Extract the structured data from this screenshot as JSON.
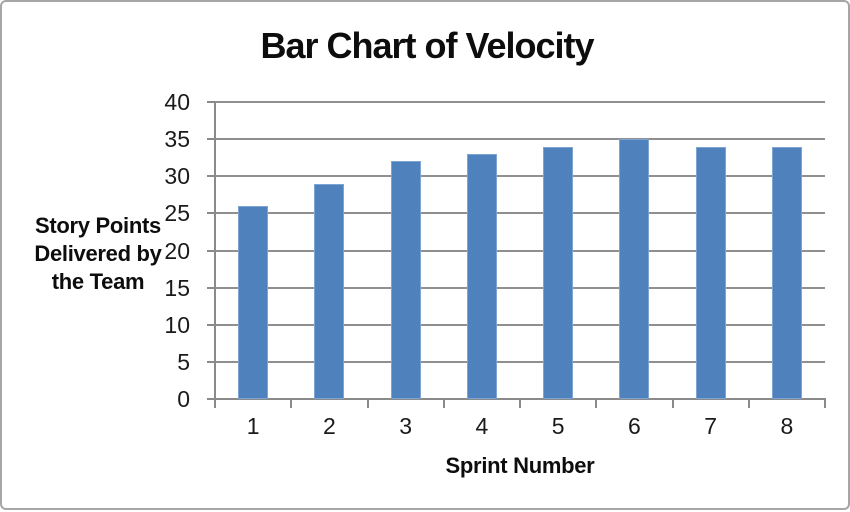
{
  "chart_data": {
    "type": "bar",
    "title": "Bar Chart of Velocity",
    "categories": [
      "1",
      "2",
      "3",
      "4",
      "5",
      "6",
      "7",
      "8"
    ],
    "values": [
      26,
      29,
      32,
      33,
      34,
      35,
      34,
      34
    ],
    "xlabel": "Sprint Number",
    "ylabel": "Story Points Delivered by the Team",
    "ylabel_lines": [
      "Story Points",
      "Delivered by",
      "the Team"
    ],
    "ylim": [
      0,
      40
    ],
    "yticks": [
      0,
      5,
      10,
      15,
      20,
      25,
      30,
      35,
      40
    ],
    "grid": true,
    "legend": false,
    "bar_color": "#4f81bd",
    "bar_border_color": "#7ea4d3",
    "gridline_color": "#8f8f8f",
    "axis_color": "#8a8a8a",
    "tick_text_color": "#1a1a1a",
    "title_color": "#0d0d0d",
    "frame_border_color": "#a6a6a6",
    "background": "#ffffff"
  }
}
